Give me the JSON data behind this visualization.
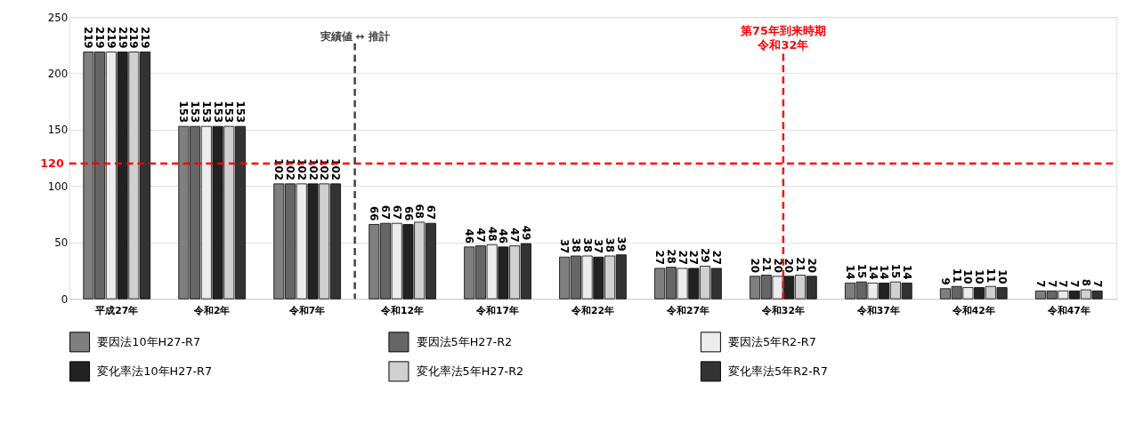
{
  "chart_data": {
    "type": "bar",
    "categories": [
      "平成27年",
      "令和2年",
      "令和7年",
      "令和12年",
      "令和17年",
      "令和22年",
      "令和27年",
      "令和32年",
      "令和37年",
      "令和42年",
      "令和47年"
    ],
    "series": [
      {
        "name": "要因法10年H27-R7",
        "color": "#7f7f7f",
        "values": [
          219,
          153,
          102,
          66,
          46,
          37,
          27,
          20,
          14,
          9,
          7
        ]
      },
      {
        "name": "要因法5年H27-R2",
        "color": "#666666",
        "values": [
          219,
          153,
          102,
          67,
          47,
          38,
          28,
          21,
          15,
          11,
          7
        ]
      },
      {
        "name": "要因法5年R2-R7",
        "color": "#ececec",
        "values": [
          219,
          153,
          102,
          67,
          48,
          38,
          27,
          20,
          14,
          10,
          7
        ]
      },
      {
        "name": "変化率法10年H27-R7",
        "color": "#222222",
        "values": [
          219,
          153,
          102,
          66,
          46,
          37,
          27,
          20,
          14,
          10,
          7
        ]
      },
      {
        "name": "変化率法5年H27-R2",
        "color": "#d0d0d0",
        "values": [
          219,
          153,
          102,
          68,
          47,
          38,
          29,
          21,
          15,
          11,
          8
        ]
      },
      {
        "name": "変化率法5年R2-R7",
        "color": "#333333",
        "values": [
          219,
          153,
          102,
          67,
          49,
          39,
          27,
          20,
          14,
          10,
          7
        ]
      }
    ],
    "ylim": [
      0,
      250
    ],
    "yticks": [
      0,
      50,
      100,
      150,
      200,
      250
    ],
    "grid": "y",
    "legend": "bottom",
    "data_labels": true,
    "ref_lines": [
      {
        "axis": "y",
        "value": 120,
        "label": "120",
        "color": "#ff0000",
        "line_style": "dashed"
      },
      {
        "axis": "x",
        "value": "令和32年",
        "label": "第75年到来時期令和32年",
        "color": "#ff0000",
        "line_style": "dashed"
      },
      {
        "axis": "x",
        "value": "令和7年",
        "label": "実績値 ↔ 推計",
        "color": "#404040",
        "line_style": "dashed"
      }
    ]
  }
}
